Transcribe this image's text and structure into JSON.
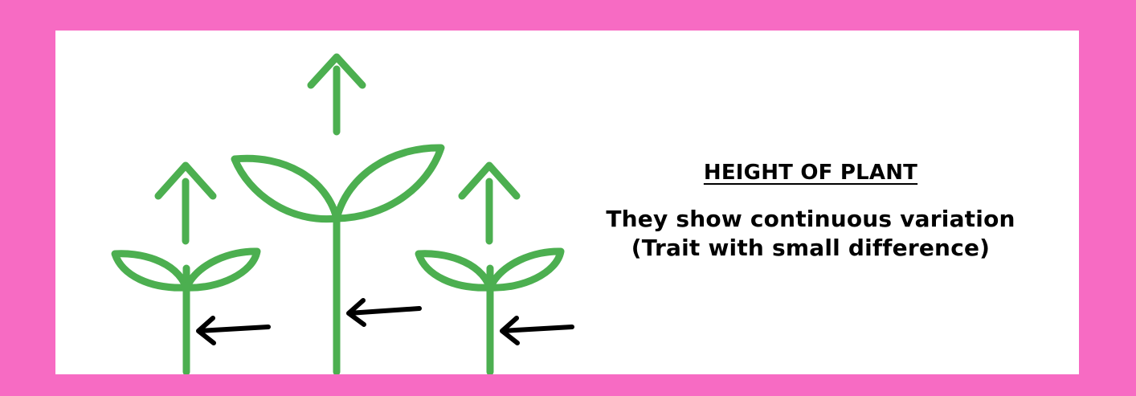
{
  "colors": {
    "frame": "#f76bc3",
    "plant": "#4caf50",
    "arrow": "#000000",
    "panel": "#ffffff"
  },
  "text": {
    "heading": "HEIGHT OF PLANT",
    "line1": "They show continuous variation",
    "line2": "(Trait with small difference)"
  },
  "icons": [
    "plant-icon",
    "growth-arrow-icon",
    "pointer-arrow-icon"
  ]
}
